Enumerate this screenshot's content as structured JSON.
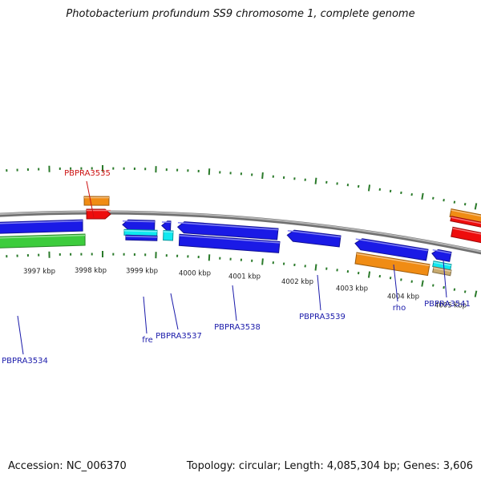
{
  "title": "Photobacterium profundum SS9 chromosome 1, complete genome",
  "footer": {
    "accession": "Accession: NC_006370",
    "topology": "Topology: circular; Length: 4,085,304 bp; Genes: 3,606"
  },
  "colors": {
    "backbone": "#8a8a8a",
    "tick": "#2a7a2a",
    "blue_gene": "#1a1ae6",
    "orange_gene": "#f08c14",
    "red_gene": "#ee0c0c",
    "green_gene": "#3ccc3c",
    "cyan_gene": "#10e8f0",
    "tan_gene": "#c8aa6e",
    "blue_label": "#1a1aaa",
    "red_label": "#cc1111",
    "scale_label": "#222222"
  },
  "scale_labels": [
    "3997 kbp",
    "3998 kbp",
    "3999 kbp",
    "4000 kbp",
    "4001 kbp",
    "4002 kbp",
    "4003 kbp",
    "4004 kbp",
    "4005 kbp"
  ],
  "gene_labels": [
    {
      "id": "label-pbpra3535",
      "text": "PBPRA3535",
      "color": "red"
    },
    {
      "id": "label-pbpra3534",
      "text": "PBPRA3534",
      "color": "blue"
    },
    {
      "id": "label-fre",
      "text": "fre",
      "color": "blue"
    },
    {
      "id": "label-pbpra3537",
      "text": "PBPRA3537",
      "color": "blue"
    },
    {
      "id": "label-pbpra3538",
      "text": "PBPRA3538",
      "color": "blue"
    },
    {
      "id": "label-pbpra3539",
      "text": "PBPRA3539",
      "color": "blue"
    },
    {
      "id": "label-rho",
      "text": "rho",
      "color": "blue"
    },
    {
      "id": "label-pbpra3541",
      "text": "PBPRA3541",
      "color": "blue"
    }
  ]
}
